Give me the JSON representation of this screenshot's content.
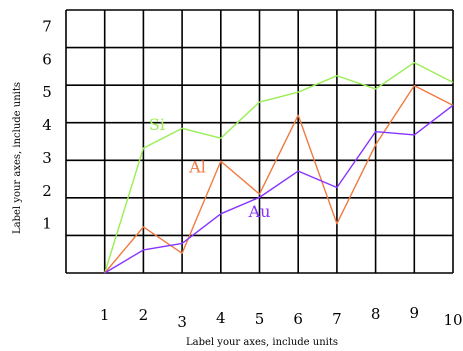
{
  "chart_data": {
    "type": "line",
    "xlabel": "Label your axes, include units",
    "ylabel": "Label your axes, include units",
    "x": [
      1,
      2,
      3,
      4,
      5,
      6,
      7,
      8,
      9,
      10
    ],
    "x_ticks": [
      "1",
      "2",
      "3",
      "4",
      "5",
      "6",
      "7",
      "8",
      "9",
      "10"
    ],
    "y_ticks": [
      "1",
      "2",
      "3",
      "4",
      "5",
      "6",
      "7"
    ],
    "xlim": [
      0,
      10
    ],
    "ylim": [
      -0.5,
      7.5
    ],
    "grid": true,
    "series": [
      {
        "name": "Si",
        "color": "#99ee55",
        "values": [
          -0.5,
          3.3,
          3.9,
          3.6,
          4.7,
          5.0,
          5.5,
          5.1,
          5.9,
          5.3
        ]
      },
      {
        "name": "Al",
        "color": "#f07a40",
        "values": [
          -0.5,
          0.9,
          0.1,
          2.9,
          1.9,
          4.3,
          1.0,
          3.4,
          5.2,
          4.6
        ]
      },
      {
        "name": "Au",
        "color": "#8833ff",
        "values": [
          -0.5,
          0.2,
          0.4,
          1.3,
          1.8,
          2.6,
          2.1,
          3.8,
          3.7,
          4.6
        ]
      }
    ]
  }
}
